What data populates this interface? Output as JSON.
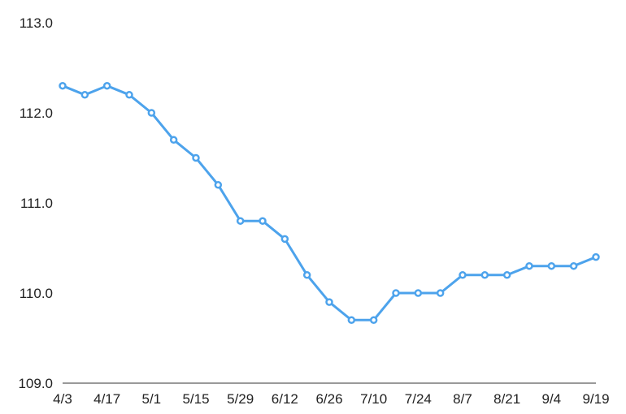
{
  "chart_data": {
    "type": "line",
    "title": "",
    "xlabel": "",
    "ylabel": "",
    "ylim": [
      109.0,
      113.0
    ],
    "yticks": [
      "109.0",
      "110.0",
      "111.0",
      "112.0",
      "113.0"
    ],
    "grid": false,
    "line_color": "#4da3ec",
    "x_tick_labels": [
      "4/3",
      "",
      "4/17",
      "",
      "5/1",
      "",
      "5/15",
      "",
      "5/29",
      "",
      "6/12",
      "",
      "6/26",
      "",
      "7/10",
      "",
      "7/24",
      "",
      "8/7",
      "",
      "8/21",
      "",
      "9/4",
      "",
      "9/19"
    ],
    "values": [
      112.3,
      112.2,
      112.3,
      112.2,
      112.0,
      111.7,
      111.5,
      111.2,
      110.8,
      110.8,
      110.6,
      110.2,
      109.9,
      109.7,
      109.7,
      110.0,
      110.0,
      110.0,
      110.2,
      110.2,
      110.2,
      110.3,
      110.3,
      110.3,
      110.4
    ]
  }
}
